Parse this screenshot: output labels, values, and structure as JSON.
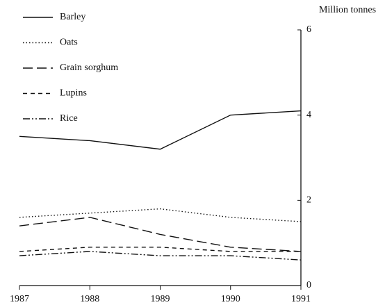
{
  "chart_data": {
    "type": "line",
    "y_axis_label": "Million tonnes",
    "x": [
      1987,
      1988,
      1989,
      1990,
      1991
    ],
    "xlim": [
      1987,
      1991
    ],
    "xticks": [
      1987,
      1988,
      1989,
      1990,
      1991
    ],
    "ylim": [
      0,
      6
    ],
    "yticks": [
      0,
      2,
      4,
      6
    ],
    "y_axis_side": "right",
    "legend": "upper left",
    "series": [
      {
        "name": "Barley",
        "color": "#111111",
        "dash": "solid",
        "values": [
          3.5,
          3.4,
          3.2,
          4.0,
          4.1
        ]
      },
      {
        "name": "Oats",
        "color": "#111111",
        "dash": "dotted",
        "values": [
          1.6,
          1.7,
          1.8,
          1.6,
          1.5
        ]
      },
      {
        "name": "Grain sorghum",
        "color": "#111111",
        "dash": "long-dash",
        "values": [
          1.4,
          1.6,
          1.2,
          0.9,
          0.8
        ]
      },
      {
        "name": "Lupins",
        "color": "#111111",
        "dash": "dashed",
        "values": [
          0.8,
          0.9,
          0.9,
          0.8,
          0.8
        ]
      },
      {
        "name": "Rice",
        "color": "#111111",
        "dash": "dash-dot-dot",
        "values": [
          0.7,
          0.8,
          0.7,
          0.7,
          0.6
        ]
      }
    ]
  }
}
